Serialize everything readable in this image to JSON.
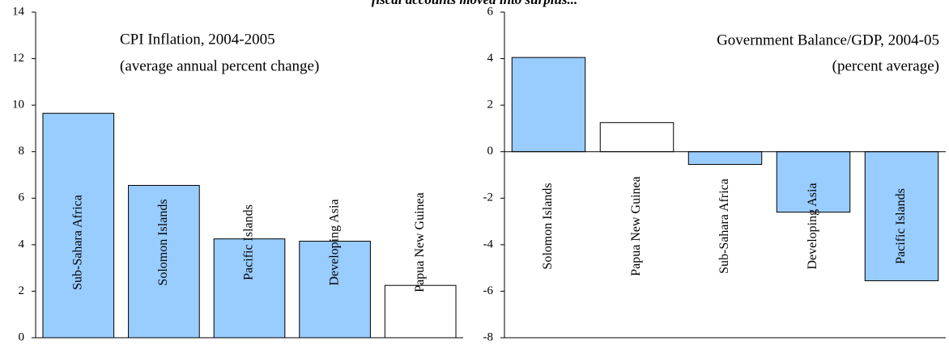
{
  "title": "fiscal accounts moved into surplus...",
  "chart_data": [
    {
      "type": "bar",
      "annotations": [
        "CPI Inflation, 2004-2005",
        "(average annual percent change)"
      ],
      "categories": [
        "Sub-Sahara Africa",
        "Solomon Islands",
        "Pacific Islands",
        "Developing Asia",
        "Papua New Guinea"
      ],
      "values": [
        9.65,
        6.55,
        4.25,
        4.15,
        2.25
      ],
      "colors": [
        "#99ccff",
        "#99ccff",
        "#99ccff",
        "#99ccff",
        "#ffffff"
      ],
      "ylim": [
        0,
        14
      ],
      "yticks": [
        0,
        2,
        4,
        6,
        8,
        10,
        12,
        14
      ]
    },
    {
      "type": "bar",
      "annotations": [
        "Government Balance/GDP, 2004-05",
        "(percent average)"
      ],
      "categories": [
        "Solomon Islands",
        "Papua New Guinea",
        "Sub-Sahara Africa",
        "Developing Asia",
        "Pacific Islands"
      ],
      "values": [
        4.05,
        1.25,
        -0.55,
        -2.6,
        -5.55
      ],
      "colors": [
        "#99ccff",
        "#ffffff",
        "#99ccff",
        "#99ccff",
        "#99ccff"
      ],
      "ylim": [
        -8,
        6
      ],
      "yticks": [
        -8,
        -6,
        -4,
        -2,
        0,
        2,
        4,
        6
      ]
    }
  ]
}
